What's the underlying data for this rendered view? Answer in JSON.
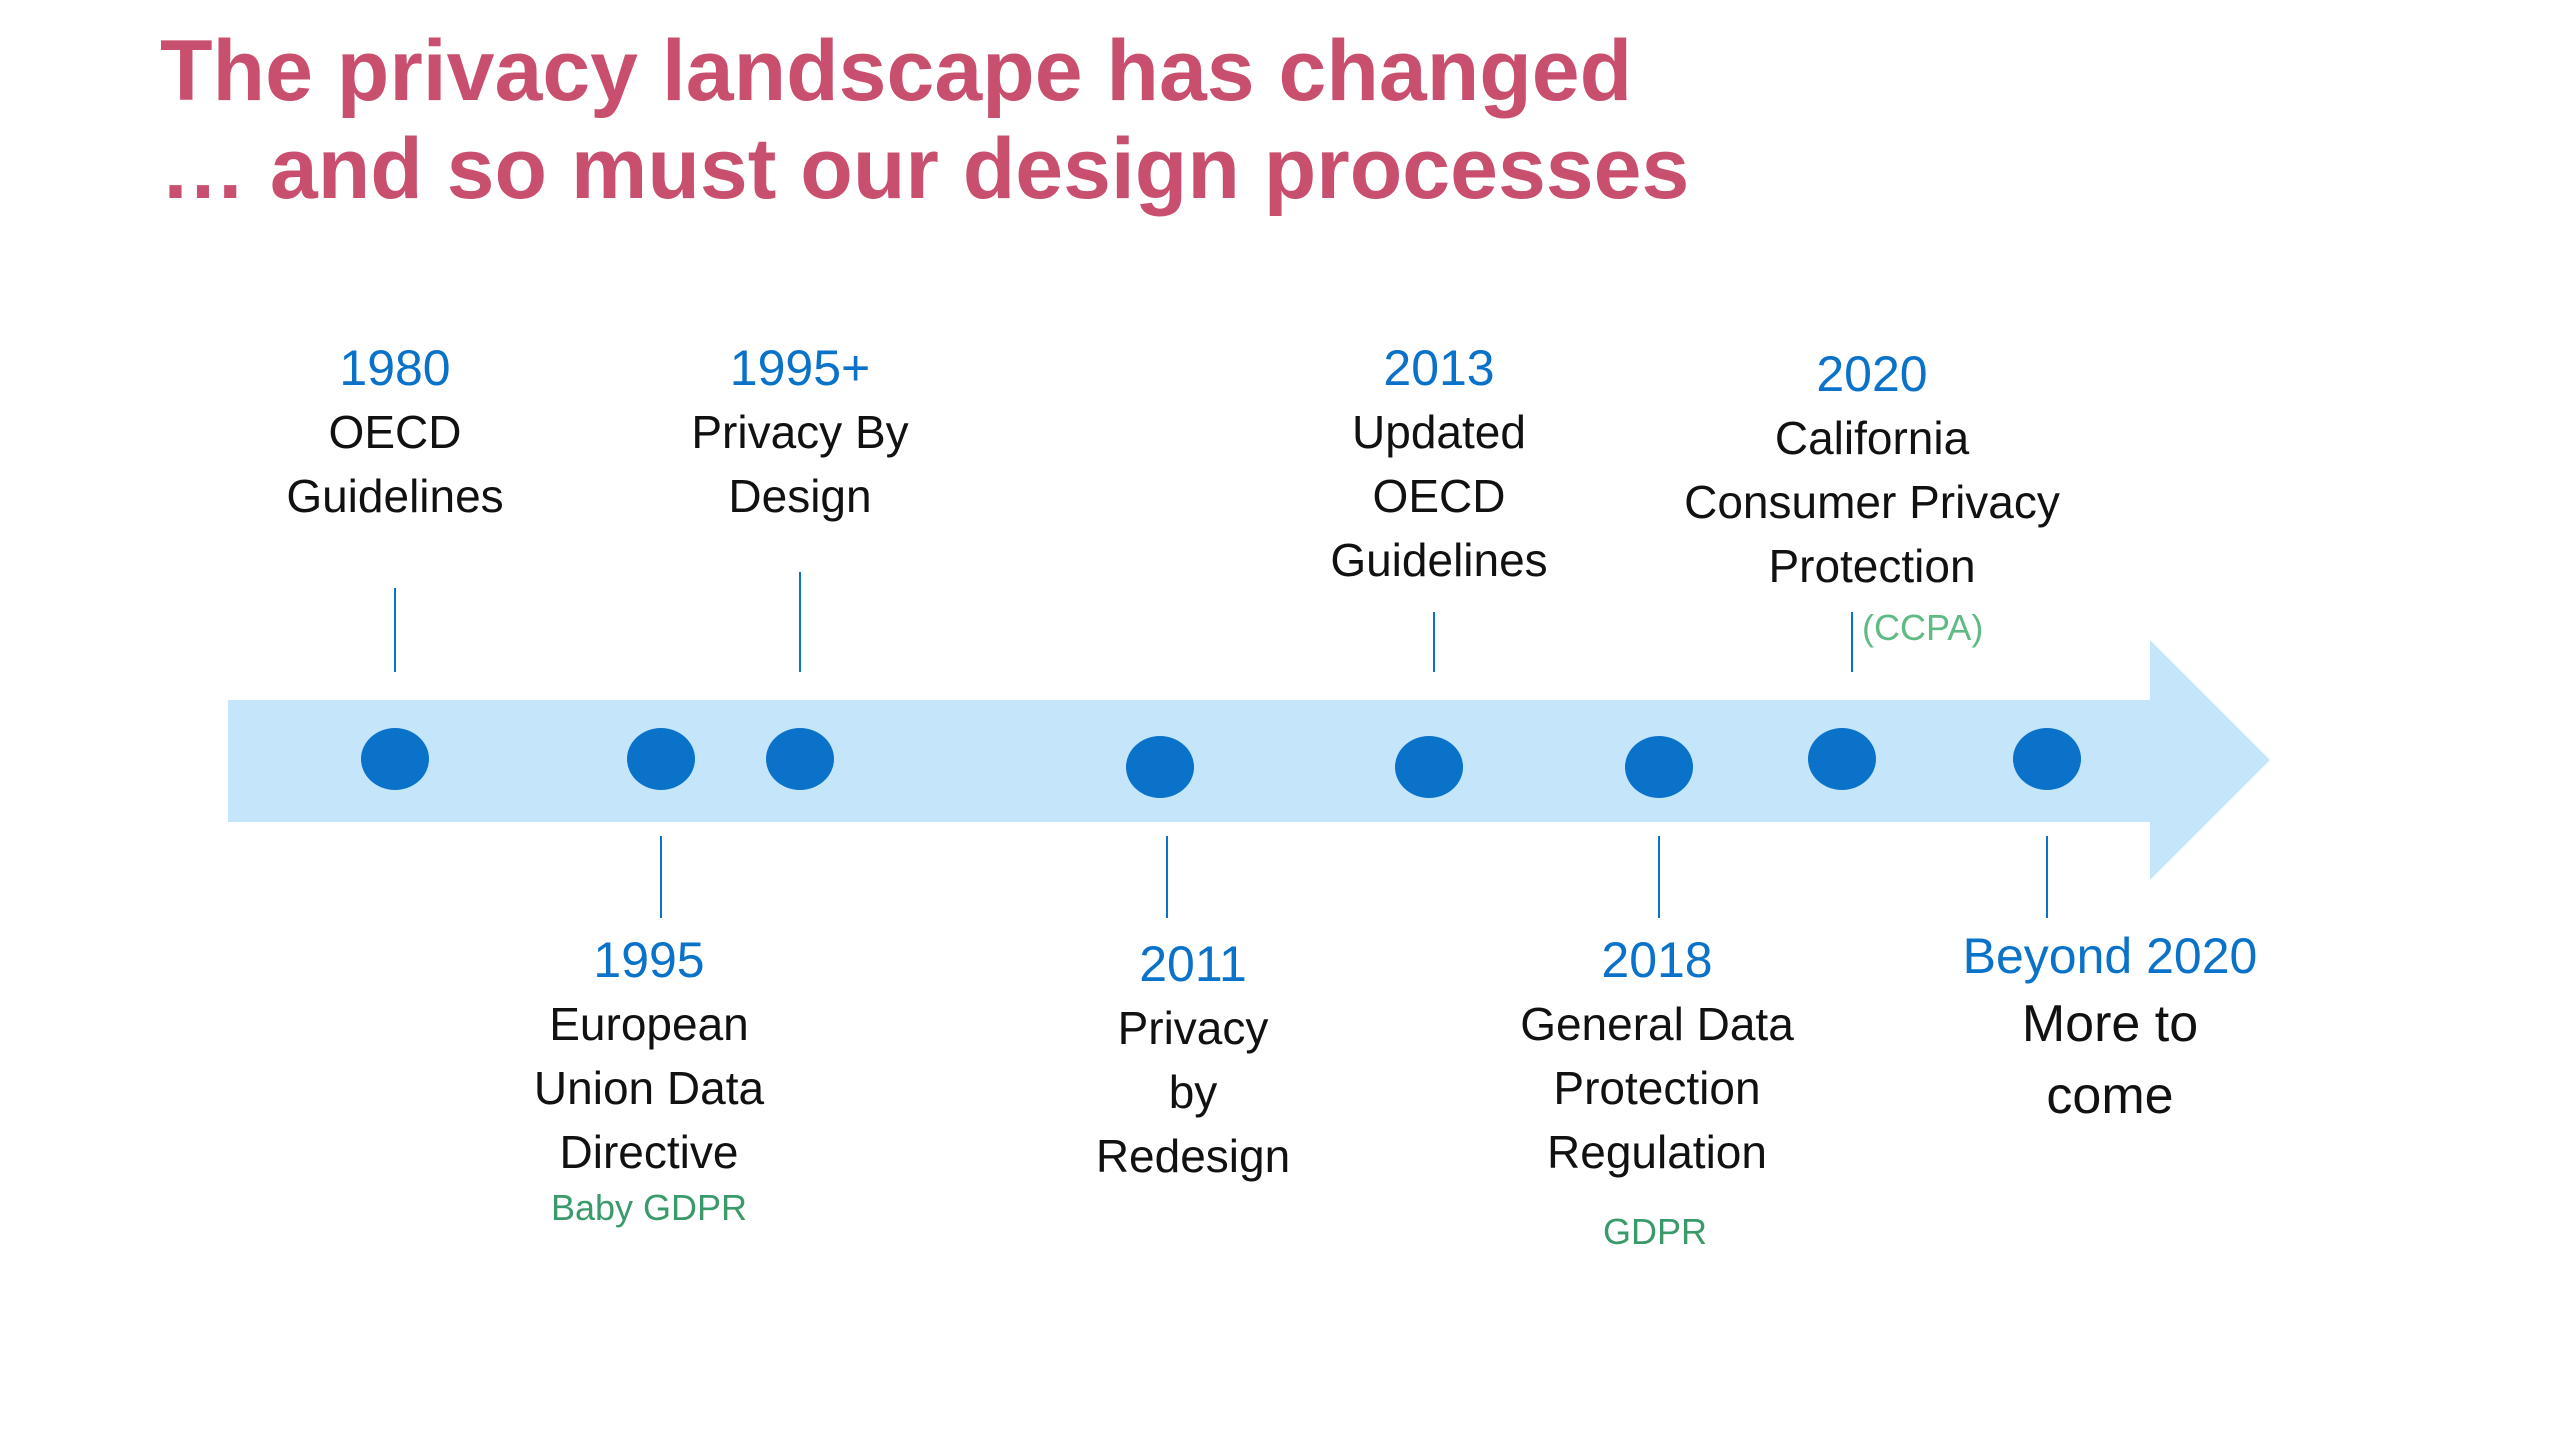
{
  "title": {
    "line1": "The privacy landscape has changed",
    "line2": "… and so must our design processes"
  },
  "colors": {
    "title": "#c8506e",
    "year": "#0a72c8",
    "arrow": "#c5e5fb",
    "dot": "#0a72c8",
    "note": "#3a9a6a"
  },
  "events": {
    "e1980": {
      "year": "1980",
      "line1": "OECD",
      "line2": "Guidelines"
    },
    "e1995": {
      "year": "1995",
      "line1": "European",
      "line2": "Union Data",
      "line3": "Directive",
      "note": "Baby GDPR"
    },
    "e1995plus": {
      "year": "1995+",
      "line1": "Privacy By",
      "line2": "Design"
    },
    "e2011": {
      "year": "2011",
      "line1": "Privacy",
      "line2": "by",
      "line3": "Redesign"
    },
    "e2013": {
      "year": "2013",
      "line1": "Updated",
      "line2": "OECD",
      "line3": "Guidelines"
    },
    "e2018": {
      "year": "2018",
      "line1": "General Data",
      "line2": "Protection",
      "line3": "Regulation",
      "note": "GDPR"
    },
    "e2020": {
      "year": "2020",
      "line1": "California",
      "line2": "Consumer Privacy",
      "line3": "Protection",
      "note": "(CCPA)"
    },
    "beyond": {
      "year": "Beyond 2020",
      "line1": "More to",
      "line2": "come"
    }
  }
}
